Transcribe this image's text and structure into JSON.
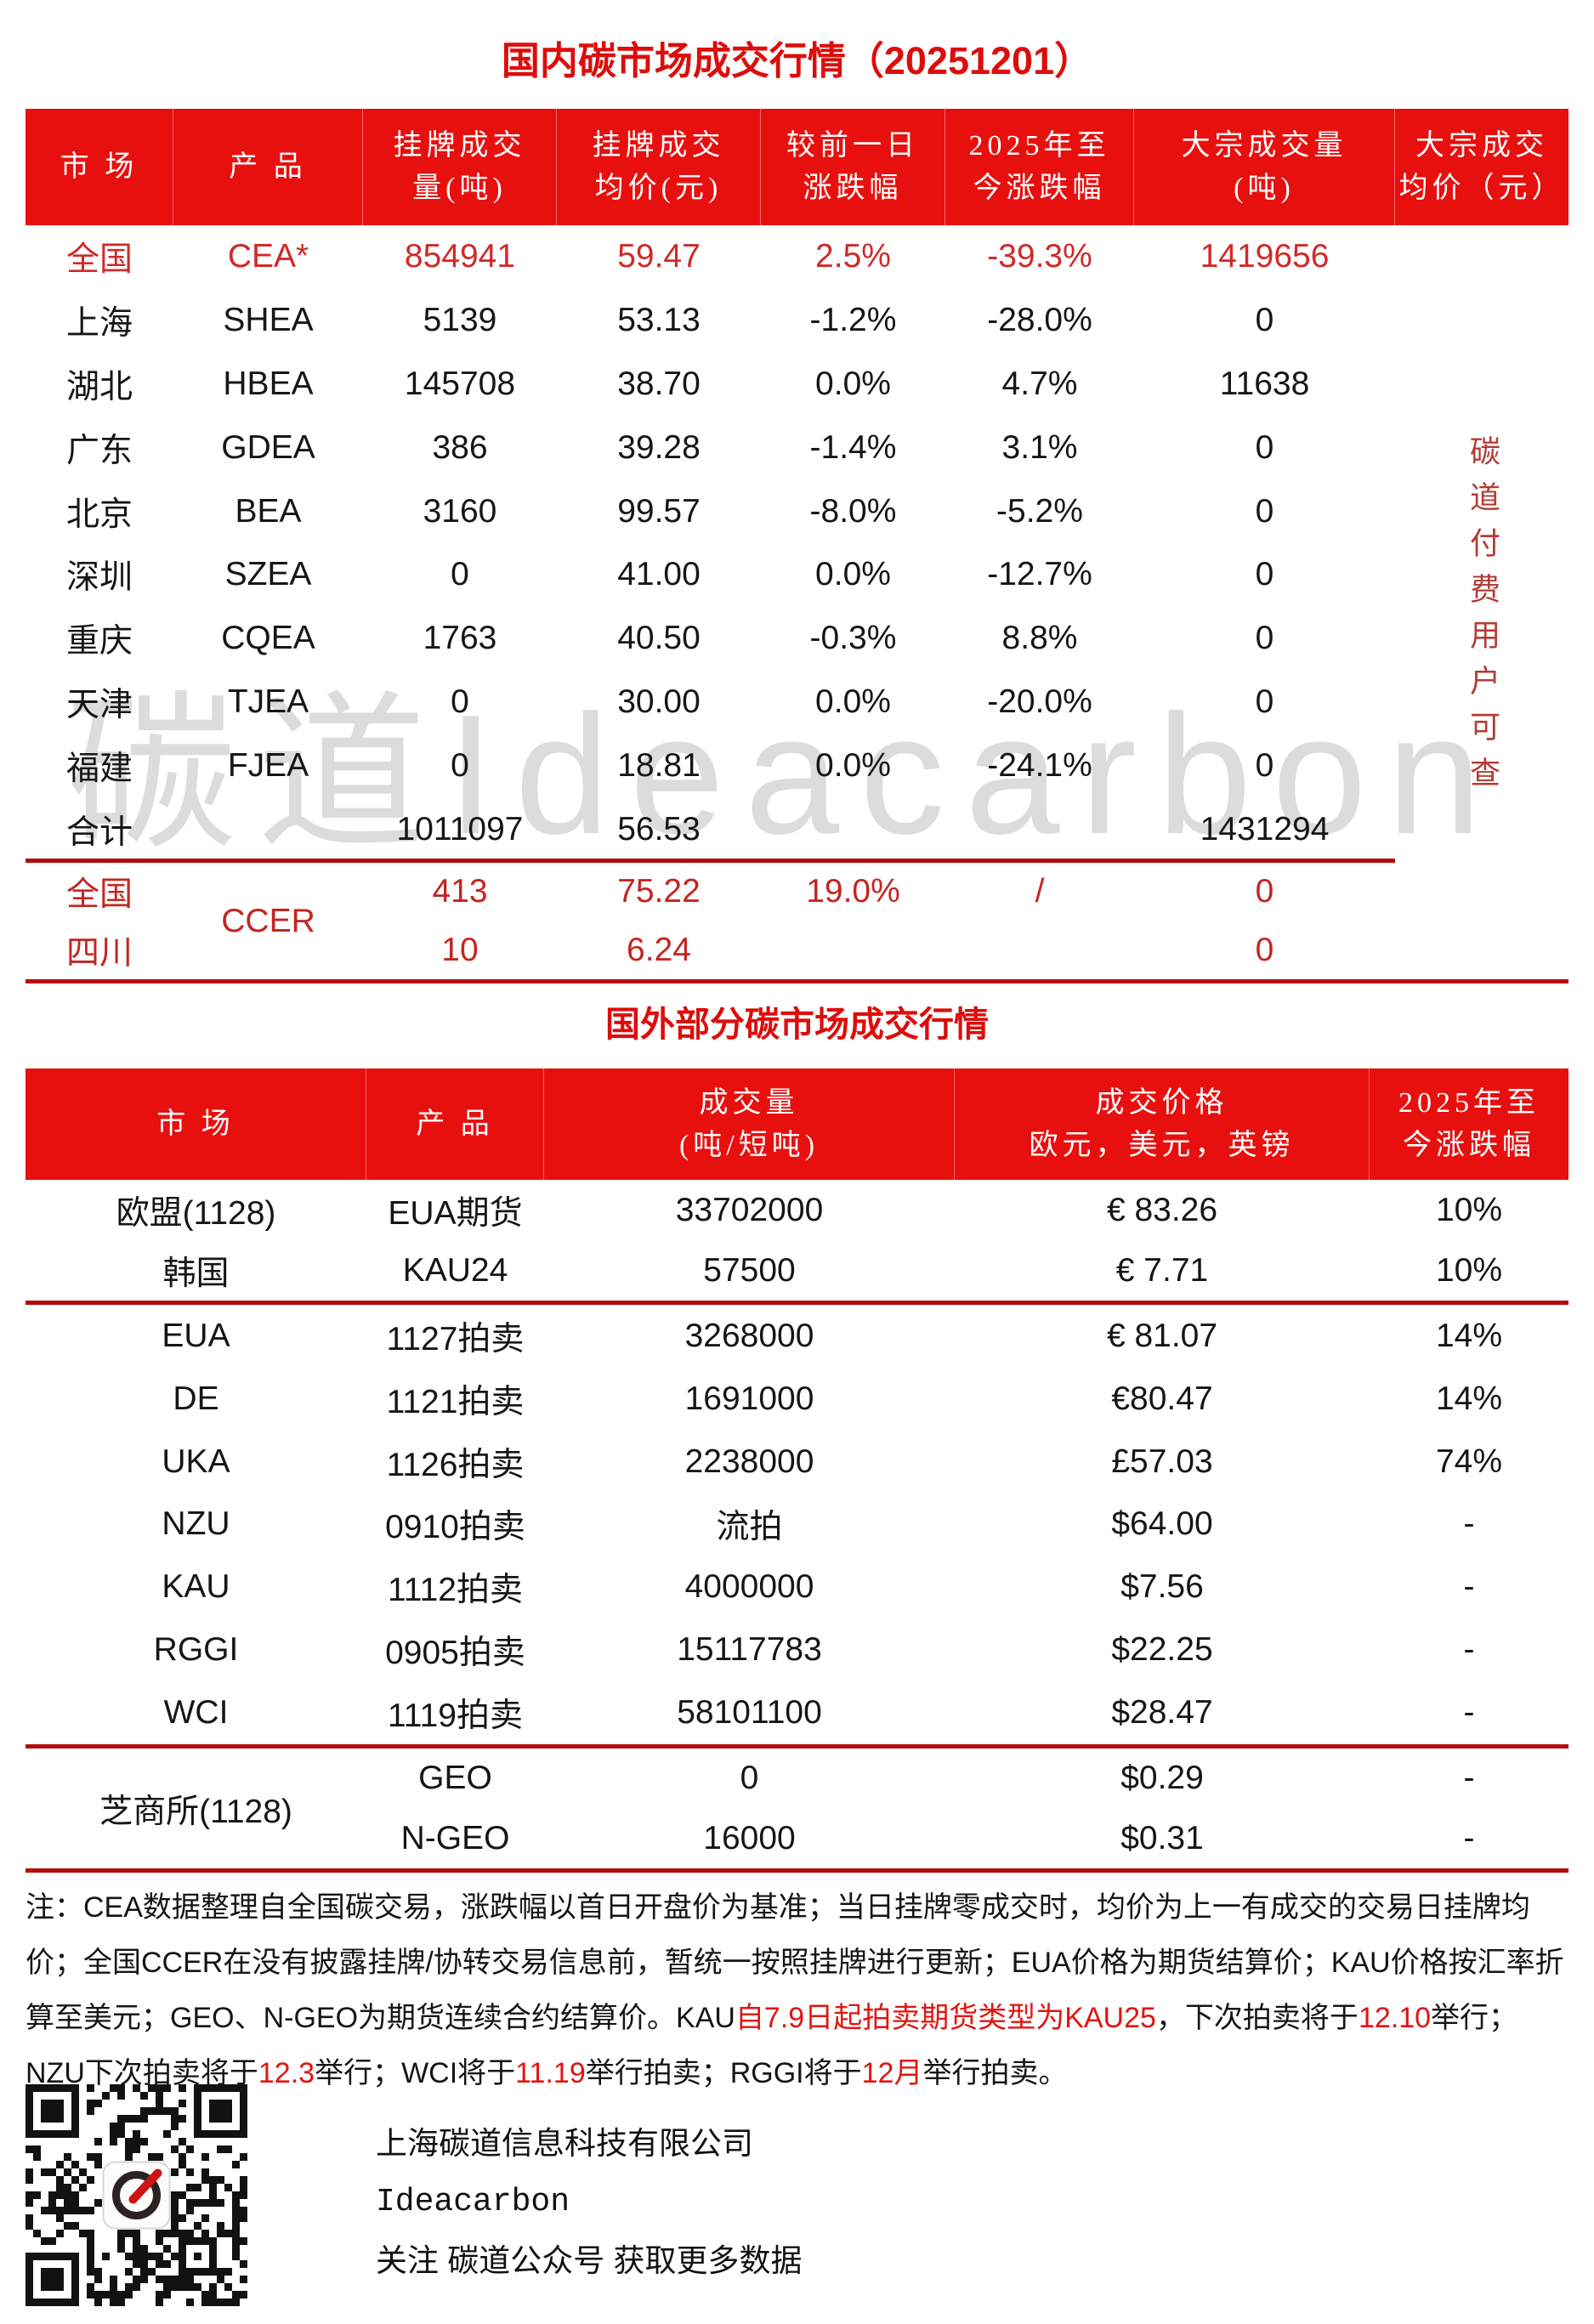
{
  "page": {
    "title_domestic": "国内碳市场成交行情（20251201）",
    "title_international": "国外部分碳市场成交行情",
    "watermark": "碳道Ideacarbon",
    "paid_notice_vertical": "碳道付费用户可查"
  },
  "colors": {
    "header_band_red": "#e8100f",
    "title_red": "#dd0d0b",
    "highlight_row_red": "#d02a28",
    "ccer_red": "#c42522",
    "rule_red": "#b50d0d",
    "note_red": "#e3140f",
    "watermark_gray": "#dcdcdc"
  },
  "domestic_table": {
    "headers": [
      "市 场",
      "产 品",
      "挂牌成交\n量(吨)",
      "挂牌成交\n均价(元)",
      "较前一日\n涨跌幅",
      "2025年至\n今涨跌幅",
      "大宗成交量\n(吨)",
      "大宗成交\n均价（元）"
    ],
    "rows": [
      {
        "market": "全国",
        "product": "CEA*",
        "volume": "854941",
        "avg_price": "59.47",
        "day_change": "2.5%",
        "ytd_change": "-39.3%",
        "block_volume": "1419656",
        "block_avg": "",
        "red": true
      },
      {
        "market": "上海",
        "product": "SHEA",
        "volume": "5139",
        "avg_price": "53.13",
        "day_change": "-1.2%",
        "ytd_change": "-28.0%",
        "block_volume": "0",
        "block_avg": "",
        "red": false
      },
      {
        "market": "湖北",
        "product": "HBEA",
        "volume": "145708",
        "avg_price": "38.70",
        "day_change": "0.0%",
        "ytd_change": "4.7%",
        "block_volume": "11638",
        "block_avg": "",
        "red": false
      },
      {
        "market": "广东",
        "product": "GDEA",
        "volume": "386",
        "avg_price": "39.28",
        "day_change": "-1.4%",
        "ytd_change": "3.1%",
        "block_volume": "0",
        "block_avg": "",
        "red": false
      },
      {
        "market": "北京",
        "product": "BEA",
        "volume": "3160",
        "avg_price": "99.57",
        "day_change": "-8.0%",
        "ytd_change": "-5.2%",
        "block_volume": "0",
        "block_avg": "",
        "red": false
      },
      {
        "market": "深圳",
        "product": "SZEA",
        "volume": "0",
        "avg_price": "41.00",
        "day_change": "0.0%",
        "ytd_change": "-12.7%",
        "block_volume": "0",
        "block_avg": "",
        "red": false
      },
      {
        "market": "重庆",
        "product": "CQEA",
        "volume": "1763",
        "avg_price": "40.50",
        "day_change": "-0.3%",
        "ytd_change": "8.8%",
        "block_volume": "0",
        "block_avg": "",
        "red": false
      },
      {
        "market": "天津",
        "product": "TJEA",
        "volume": "0",
        "avg_price": "30.00",
        "day_change": "0.0%",
        "ytd_change": "-20.0%",
        "block_volume": "0",
        "block_avg": "",
        "red": false
      },
      {
        "market": "福建",
        "product": "FJEA",
        "volume": "0",
        "avg_price": "18.81",
        "day_change": "0.0%",
        "ytd_change": "-24.1%",
        "block_volume": "0",
        "block_avg": "",
        "red": false
      },
      {
        "market": "合计",
        "product": "",
        "volume": "1011097",
        "avg_price": "56.53",
        "day_change": "",
        "ytd_change": "",
        "block_volume": "1431294",
        "block_avg": "",
        "red": false
      }
    ],
    "ccer_label": "CCER",
    "ccer_rows": [
      {
        "market": "全国",
        "volume": "413",
        "avg_price": "75.22",
        "day_change": "19.0%",
        "ytd_change": "/",
        "block_volume": "0",
        "block_avg": ""
      },
      {
        "market": "四川",
        "volume": "10",
        "avg_price": "6.24",
        "day_change": "",
        "ytd_change": "",
        "block_volume": "0",
        "block_avg": ""
      }
    ]
  },
  "international_table": {
    "headers": [
      "市 场",
      "产 品",
      "成交量\n(吨/短吨)",
      "成交价格\n欧元，美元，英镑",
      "2025年至\n今涨跌幅"
    ],
    "futures_rows": [
      {
        "market": "欧盟(1128)",
        "product": "EUA期货",
        "volume": "33702000",
        "price": "€ 83.26",
        "ytd_change": "10%"
      },
      {
        "market": "韩国",
        "product": "KAU24",
        "volume": "57500",
        "price": "€ 7.71",
        "ytd_change": "10%"
      }
    ],
    "auction_rows": [
      {
        "market": "EUA",
        "product": "1127拍卖",
        "volume": "3268000",
        "price": "€ 81.07",
        "ytd_change": "14%"
      },
      {
        "market": "DE",
        "product": "1121拍卖",
        "volume": "1691000",
        "price": "€80.47",
        "ytd_change": "14%"
      },
      {
        "market": "UKA",
        "product": "1126拍卖",
        "volume": "2238000",
        "price": "£57.03",
        "ytd_change": "74%"
      },
      {
        "market": "NZU",
        "product": "0910拍卖",
        "volume": "流拍",
        "price": "$64.00",
        "ytd_change": "-"
      },
      {
        "market": "KAU",
        "product": "1112拍卖",
        "volume": "4000000",
        "price": "$7.56",
        "ytd_change": "-"
      },
      {
        "market": "RGGI",
        "product": "0905拍卖",
        "volume": "15117783",
        "price": "$22.25",
        "ytd_change": "-"
      },
      {
        "market": "WCI",
        "product": "1119拍卖",
        "volume": "58101100",
        "price": "$28.47",
        "ytd_change": "-"
      }
    ],
    "cme_label": "芝商所(1128)",
    "cme_rows": [
      {
        "product": "GEO",
        "volume": "0",
        "price": "$0.29",
        "ytd_change": "-"
      },
      {
        "product": "N-GEO",
        "volume": "16000",
        "price": "$0.31",
        "ytd_change": "-"
      }
    ]
  },
  "notes": {
    "segments": [
      {
        "text": "注：CEA数据整理自全国碳交易，涨跌幅以首日开盘价为基准；当日挂牌零成交时，均价为上一有成交的交易日挂牌均价；全国CCER在没有披露挂牌/协转交易信息前，暂统一按照挂牌进行更新；EUA价格为期货结算价；KAU价格按汇率折算至美元；GEO、N-GEO为期货连续合约结算价。KAU",
        "red": false
      },
      {
        "text": "自7.9日起拍卖期货类型为KAU25",
        "red": true
      },
      {
        "text": "，下次拍卖将于",
        "red": false
      },
      {
        "text": "12.10",
        "red": true
      },
      {
        "text": "举行；NZU下次拍卖将于",
        "red": false
      },
      {
        "text": "12.3",
        "red": true
      },
      {
        "text": "举行；WCI将于",
        "red": false
      },
      {
        "text": "11.19",
        "red": true
      },
      {
        "text": "举行拍卖；RGGI将于",
        "red": false
      },
      {
        "text": "12月",
        "red": true
      },
      {
        "text": "举行拍卖。",
        "red": false
      }
    ]
  },
  "footer": {
    "company_cn": "上海碳道信息科技有限公司",
    "company_en": "Ideacarbon",
    "follow_text": "关注 碳道公众号 获取更多数据"
  }
}
